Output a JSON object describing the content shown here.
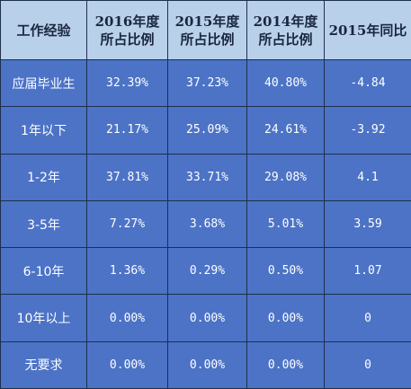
{
  "table": {
    "headers": [
      [
        "工作经验"
      ],
      [
        "2016年度",
        "所占比例"
      ],
      [
        "2015年度",
        "所占比例"
      ],
      [
        "2014年度",
        "所占比例"
      ],
      [
        "2015年同比"
      ]
    ],
    "rows": [
      [
        "应届毕业生",
        "32.39%",
        "37.23%",
        "40.80%",
        "-4.84"
      ],
      [
        "1年以下",
        "21.17%",
        "25.09%",
        "24.61%",
        "-3.92"
      ],
      [
        "1-2年",
        "37.81%",
        "33.71%",
        "29.08%",
        "4.1"
      ],
      [
        "3-5年",
        "7.27%",
        "3.68%",
        "5.01%",
        "3.59"
      ],
      [
        "6-10年",
        "1.36%",
        "0.29%",
        "0.50%",
        "1.07"
      ],
      [
        "10年以上",
        "0.00%",
        "0.00%",
        "0.00%",
        "0"
      ],
      [
        "无要求",
        "0.00%",
        "0.00%",
        "0.00%",
        "0"
      ]
    ]
  },
  "colors": {
    "header_bg": "#b9d0ea",
    "body_bg": "#4c73c6",
    "border": "#1e2f4d",
    "body_text": "#ffffff"
  }
}
